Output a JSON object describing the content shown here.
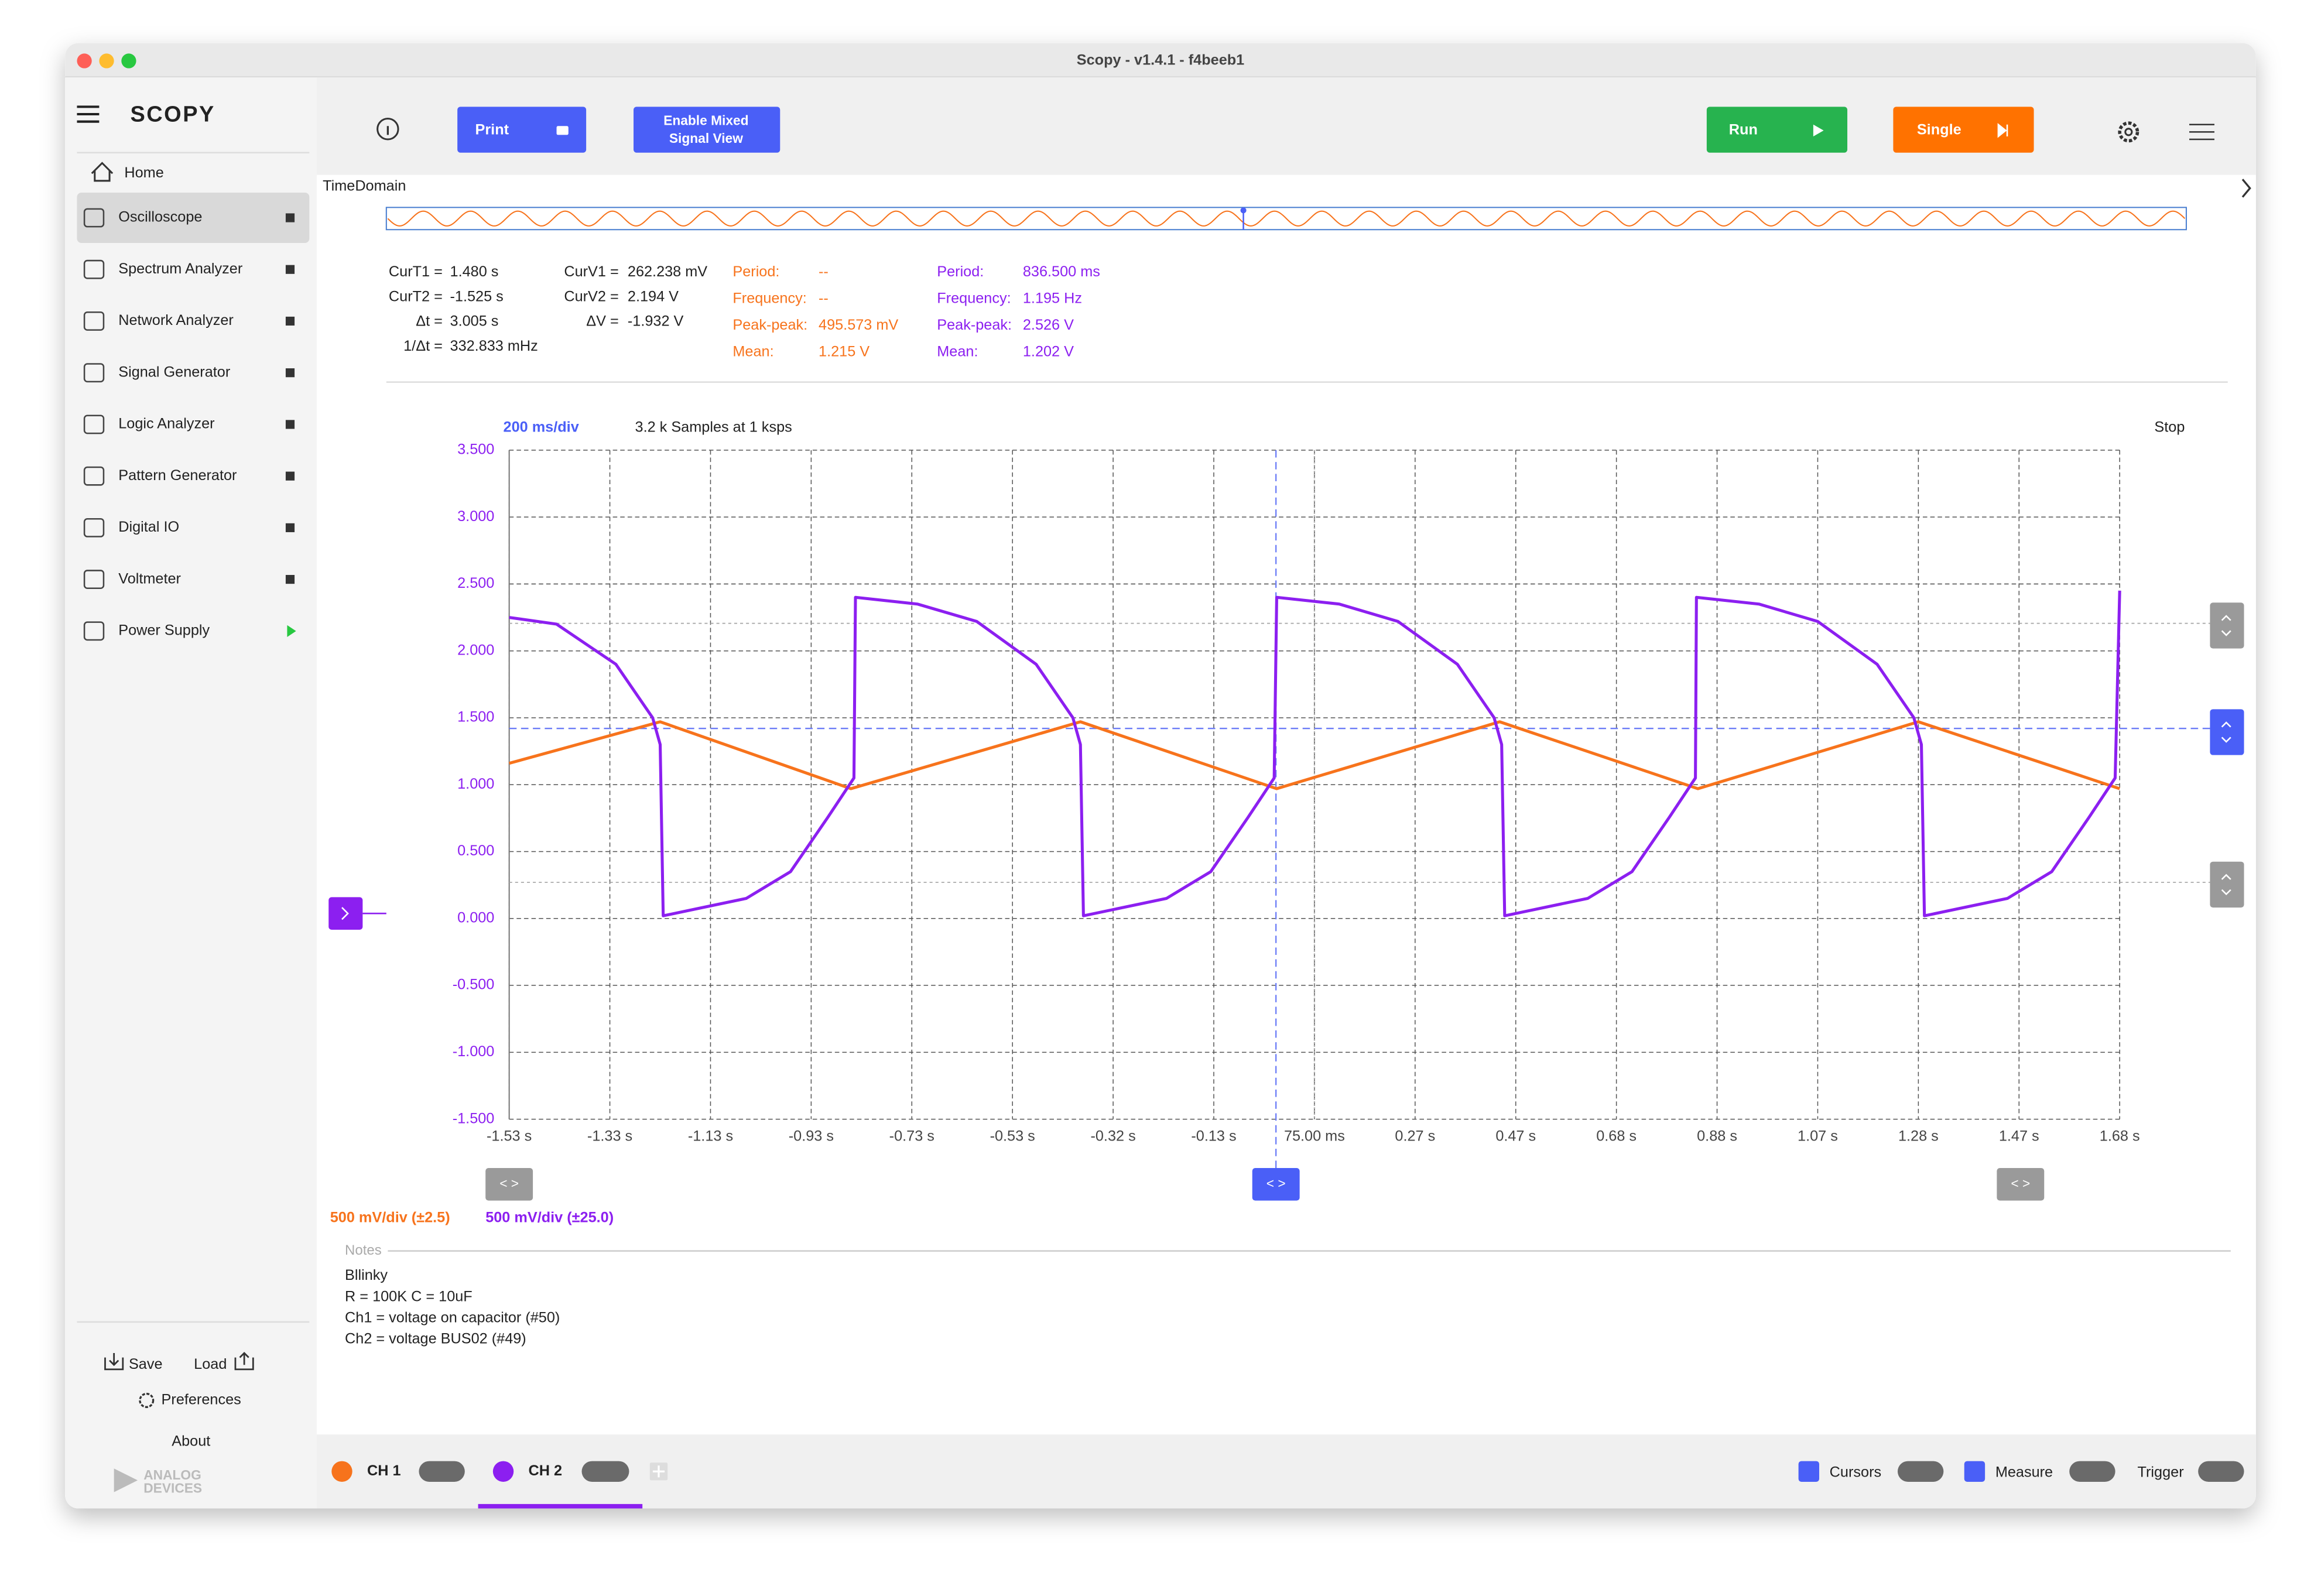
{
  "window_title": "Scopy - v1.4.1 - f4beeb1",
  "sidebar": {
    "logo": "SCOPY",
    "home": "Home",
    "tools": [
      "Oscilloscope",
      "Spectrum Analyzer",
      "Network Analyzer",
      "Signal Generator",
      "Logic Analyzer",
      "Pattern Generator",
      "Digital IO",
      "Voltmeter",
      "Power Supply"
    ],
    "save": "Save",
    "load": "Load",
    "preferences": "Preferences",
    "about": "About",
    "brand": [
      "ANALOG",
      "DEVICES"
    ]
  },
  "toolbar": {
    "print": "Print",
    "mixed_signal": [
      "Enable Mixed",
      "Signal View"
    ],
    "run": "Run",
    "single": "Single"
  },
  "time_domain_label": "TimeDomain",
  "cursor_readouts": {
    "time": [
      [
        "CurT1 =",
        "1.480 s"
      ],
      [
        "CurT2 =",
        "-1.525 s"
      ],
      [
        "Δt =",
        "3.005 s"
      ],
      [
        "1/Δt =",
        "332.833 mHz"
      ]
    ],
    "voltage": [
      [
        "CurV1 =",
        "262.238 mV"
      ],
      [
        "CurV2 =",
        "2.194 V"
      ],
      [
        "ΔV =",
        "-1.932 V"
      ]
    ]
  },
  "measurements": {
    "ch1": [
      [
        "Period:",
        "--"
      ],
      [
        "Frequency:",
        "--"
      ],
      [
        "Peak-peak:",
        "495.573 mV"
      ],
      [
        "Mean:",
        "1.215 V"
      ]
    ],
    "ch2": [
      [
        "Period:",
        "836.500 ms"
      ],
      [
        "Frequency:",
        "1.195 Hz"
      ],
      [
        "Peak-peak:",
        "2.526 V"
      ],
      [
        "Mean:",
        "1.202 V"
      ]
    ]
  },
  "plot_info": {
    "timebase": "200 ms/div",
    "samples": "3.2 k Samples at 1 ksps",
    "status": "Stop"
  },
  "chart_data": {
    "type": "line",
    "xlim": [
      -1.525,
      1.675
    ],
    "ylim": [
      -1.5,
      3.5
    ],
    "grid": true,
    "xticks": [
      {
        "value": -1.525,
        "label": "-1.53 s"
      },
      {
        "value": -1.325,
        "label": "-1.33 s"
      },
      {
        "value": -1.125,
        "label": "-1.13 s"
      },
      {
        "value": -0.925,
        "label": "-0.93 s"
      },
      {
        "value": -0.725,
        "label": "-0.73 s"
      },
      {
        "value": -0.525,
        "label": "-0.53 s"
      },
      {
        "value": -0.325,
        "label": "-0.32 s"
      },
      {
        "value": -0.125,
        "label": "-0.13 s"
      },
      {
        "value": 0.075,
        "label": "75.00 ms"
      },
      {
        "value": 0.275,
        "label": "0.27 s"
      },
      {
        "value": 0.475,
        "label": "0.47 s"
      },
      {
        "value": 0.675,
        "label": "0.68 s"
      },
      {
        "value": 0.875,
        "label": "0.88 s"
      },
      {
        "value": 1.075,
        "label": "1.07 s"
      },
      {
        "value": 1.275,
        "label": "1.28 s"
      },
      {
        "value": 1.475,
        "label": "1.47 s"
      },
      {
        "value": 1.675,
        "label": "1.68 s"
      }
    ],
    "yticks": [
      {
        "value": 3.5,
        "label": "3.500"
      },
      {
        "value": 3,
        "label": "3.000"
      },
      {
        "value": 2.5,
        "label": "2.500"
      },
      {
        "value": 2,
        "label": "2.000"
      },
      {
        "value": 1.5,
        "label": "1.500"
      },
      {
        "value": 1,
        "label": "1.000"
      },
      {
        "value": 0.5,
        "label": "0.500"
      },
      {
        "value": 0,
        "label": "0.000"
      },
      {
        "value": -0.5,
        "label": "-0.500"
      },
      {
        "value": -1,
        "label": "-1.000"
      },
      {
        "value": -1.5,
        "label": "-1.500"
      }
    ],
    "series": [
      {
        "color": "#f7731c",
        "x": [
          -1.525,
          -1.225,
          -0.846,
          -0.39,
          0.0,
          0.443,
          0.837,
          1.275,
          1.675
        ],
        "values": [
          1.16,
          1.47,
          0.97,
          1.47,
          0.97,
          1.47,
          0.97,
          1.47,
          0.97
        ]
      },
      {
        "color": "#8c1ff0",
        "x": [
          -1.525,
          -1.431,
          -1.313,
          -1.24,
          -1.225,
          -1.219,
          -1.143,
          -1.054,
          -0.966,
          -0.893,
          -0.84,
          -0.837,
          -0.714,
          -0.596,
          -0.478,
          -0.405,
          -0.39,
          -0.384,
          -0.308,
          -0.219,
          -0.131,
          -0.058,
          -0.005,
          0.0,
          0.124,
          0.241,
          0.359,
          0.432,
          0.447,
          0.453,
          0.529,
          0.618,
          0.706,
          0.779,
          0.832,
          0.834,
          0.958,
          1.075,
          1.193,
          1.266,
          1.281,
          1.287,
          1.363,
          1.452,
          1.54,
          1.613,
          1.666,
          1.675
        ],
        "values": [
          2.25,
          2.2,
          1.9,
          1.5,
          1.3,
          0.02,
          0.08,
          0.15,
          0.35,
          0.75,
          1.05,
          2.4,
          2.35,
          2.22,
          1.9,
          1.5,
          1.3,
          0.02,
          0.08,
          0.15,
          0.35,
          0.75,
          1.05,
          2.4,
          2.35,
          2.22,
          1.9,
          1.5,
          1.3,
          0.02,
          0.08,
          0.15,
          0.35,
          0.75,
          1.05,
          2.4,
          2.35,
          2.22,
          1.9,
          1.5,
          1.3,
          0.02,
          0.08,
          0.15,
          0.35,
          0.75,
          1.05,
          2.45
        ]
      }
    ]
  },
  "channel_scales": [
    "500 mV/div (±2.5)",
    "500 mV/div (±25.0)"
  ],
  "notes": {
    "label": "Notes",
    "lines": [
      "Bllinky",
      "R = 100K C = 10uF",
      "Ch1 = voltage on capacitor (#50)",
      "Ch2 = voltage BUS02 (#49)"
    ]
  },
  "bottom_bar": {
    "channels": [
      "CH 1",
      "CH 2"
    ],
    "cursors": "Cursors",
    "measure": "Measure",
    "trigger": "Trigger"
  }
}
